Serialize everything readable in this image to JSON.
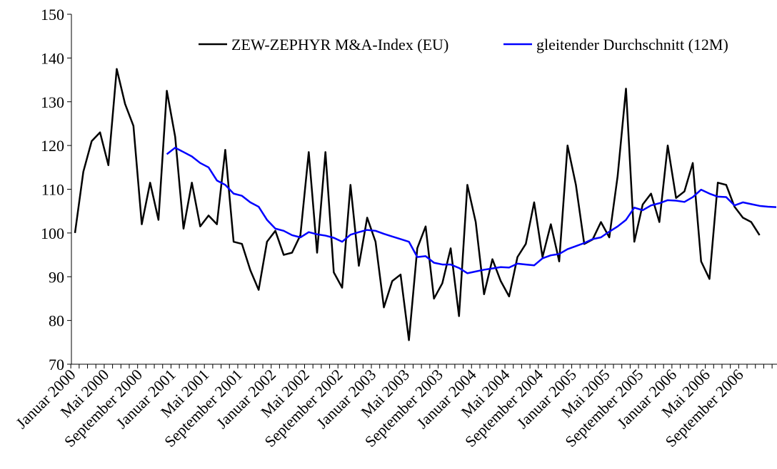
{
  "chart_data": {
    "type": "line",
    "categories": [
      "Januar 2000",
      null,
      null,
      null,
      "Mai 2000",
      null,
      null,
      null,
      "September 2000",
      null,
      null,
      null,
      "Januar 2001",
      null,
      null,
      null,
      "Mai 2001",
      null,
      null,
      null,
      "September 2001",
      null,
      null,
      null,
      "Januar 2002",
      null,
      null,
      null,
      "Mai 2002",
      null,
      null,
      null,
      "September 2002",
      null,
      null,
      null,
      "Januar 2003",
      null,
      null,
      null,
      "Mai 2003",
      null,
      null,
      null,
      "September 2003",
      null,
      null,
      null,
      "Januar 2004",
      null,
      null,
      null,
      "Mai 2004",
      null,
      null,
      null,
      "September 2004",
      null,
      null,
      null,
      "Januar 2005",
      null,
      null,
      null,
      "Mai 2005",
      null,
      null,
      null,
      "September 2005",
      null,
      null,
      null,
      "Januar 2006",
      null,
      null,
      null,
      "Mai 2006",
      null,
      null,
      null,
      "September 2006",
      null,
      null,
      null,
      null
    ],
    "series": [
      {
        "name": "ZEW-ZEPHYR M&A-Index (EU)",
        "color": "#000000",
        "values": [
          100,
          114,
          121,
          123,
          115.5,
          137.5,
          129.5,
          124.5,
          102,
          111.5,
          103,
          132.5,
          122,
          101,
          111.5,
          101.5,
          104,
          102,
          119,
          98,
          97.5,
          91.5,
          87,
          98,
          100.5,
          95,
          95.5,
          99.5,
          118.5,
          95.5,
          118.5,
          91,
          87.5,
          111,
          92.5,
          103.5,
          98,
          83,
          89,
          90.5,
          75.5,
          96.5,
          101.5,
          85,
          88.5,
          96.5,
          81,
          111,
          102.5,
          86,
          94,
          89,
          85.5,
          94.5,
          97.5,
          107,
          94.5,
          102,
          93.5,
          120,
          111,
          97.5,
          98.5,
          102.5,
          99,
          113,
          133,
          98,
          106.5,
          109,
          102.5,
          120,
          108,
          109.5,
          116,
          93.5,
          89.5,
          111.5,
          111,
          106,
          103.5,
          102.5,
          99.5,
          null,
          null
        ]
      },
      {
        "name": "gleitender Durchschnitt (12M)",
        "color": "#0000ff",
        "values": [
          null,
          null,
          null,
          null,
          null,
          null,
          null,
          null,
          null,
          null,
          null,
          118,
          119.5,
          118.5,
          117.5,
          116,
          115,
          112,
          111,
          109,
          108.5,
          107,
          106,
          103,
          101,
          100.5,
          99.5,
          99,
          100.2,
          99.7,
          99.4,
          98.9,
          98,
          99.6,
          100.2,
          100.7,
          100.5,
          99.8,
          99.2,
          98.6,
          98,
          94.5,
          94.7,
          93.2,
          92.8,
          92.8,
          92,
          90.8,
          91.2,
          91.6,
          91.9,
          92.2,
          92.1,
          93,
          92.8,
          92.6,
          94.2,
          94.9,
          95.2,
          96.3,
          97,
          97.7,
          98.6,
          99,
          100.3,
          101.5,
          103,
          105.8,
          105.2,
          106.3,
          106.8,
          107.5,
          107.4,
          107.1,
          108.2,
          109.9,
          109,
          108.3,
          108.2,
          106.3,
          107,
          106.6,
          106.2,
          106,
          105.9
        ]
      }
    ],
    "ylim": [
      70,
      150
    ],
    "yticks": [
      70,
      80,
      90,
      100,
      110,
      120,
      130,
      140,
      150
    ]
  }
}
